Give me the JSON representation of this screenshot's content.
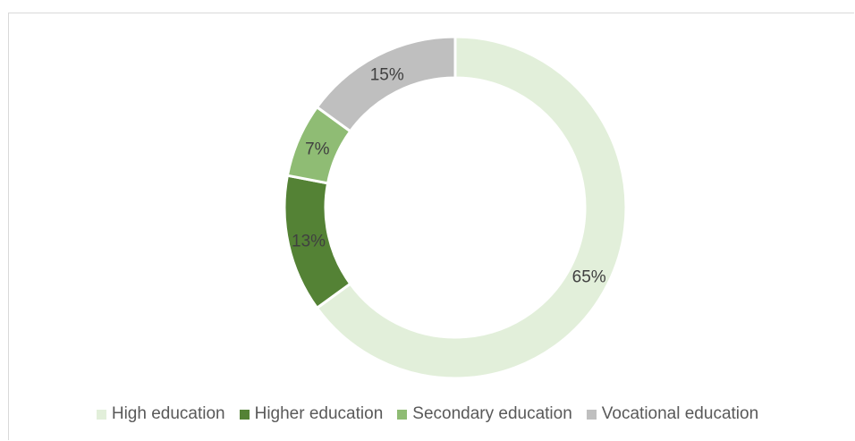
{
  "chart_data": {
    "type": "pie",
    "donut": true,
    "legend_position": "bottom",
    "series": [
      {
        "name": "High education",
        "value": 65,
        "label": "65%",
        "color": "#e2efda"
      },
      {
        "name": "Higher education",
        "value": 13,
        "label": "13%",
        "color": "#548235"
      },
      {
        "name": "Secondary education",
        "value": 7,
        "label": "7%",
        "color": "#8fbc74"
      },
      {
        "name": "Vocational education",
        "value": 15,
        "label": "15%",
        "color": "#bfbfbf"
      }
    ]
  }
}
